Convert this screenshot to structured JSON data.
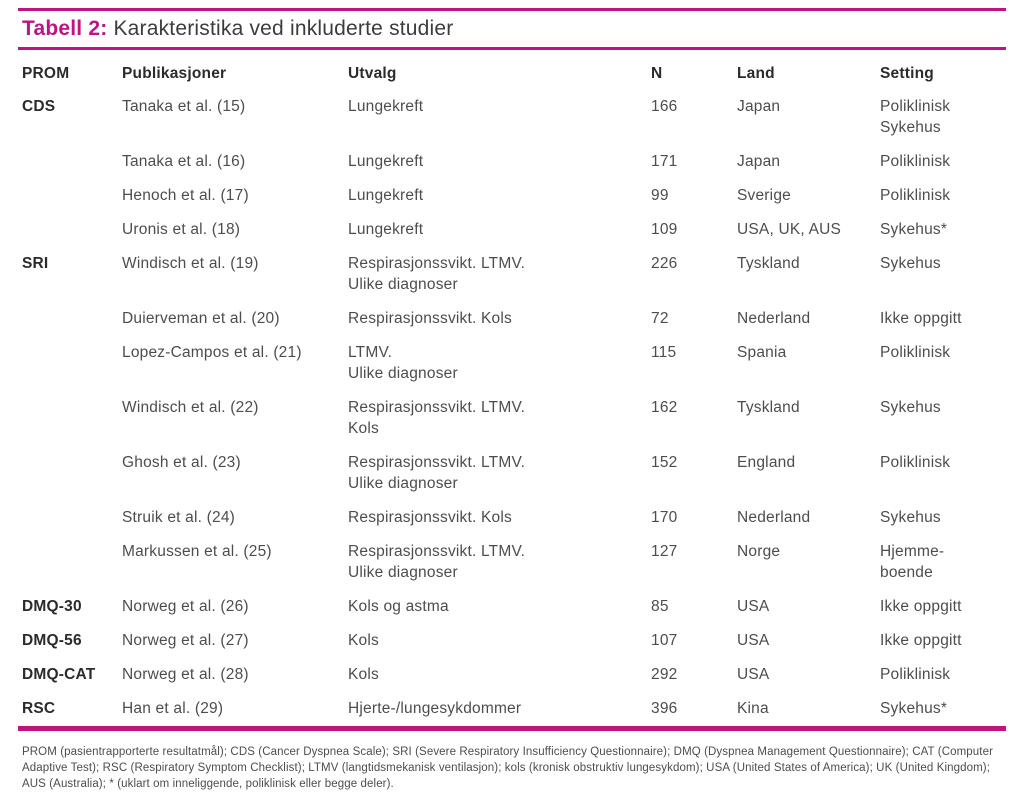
{
  "colors": {
    "accent": "#C01382",
    "header_text": "#2B2B2B",
    "body_text": "#4D4D4D",
    "title_text": "#3C3C3C"
  },
  "title": {
    "label": "Tabell 2:",
    "text": "Karakteristika ved inkluderte studier"
  },
  "table": {
    "headers": [
      "PROM",
      "Publikasjoner",
      "Utvalg",
      "N",
      "Land",
      "Setting"
    ],
    "rows": [
      {
        "prom": "CDS",
        "publikasjon": "Tanaka et al. (15)",
        "utvalg": "Lungekreft",
        "n": "166",
        "land": "Japan",
        "setting": "Poliklinisk\nSykehus"
      },
      {
        "prom": "",
        "publikasjon": "Tanaka et al. (16)",
        "utvalg": "Lungekreft",
        "n": "171",
        "land": "Japan",
        "setting": "Poliklinisk"
      },
      {
        "prom": "",
        "publikasjon": "Henoch et al. (17)",
        "utvalg": "Lungekreft",
        "n": "99",
        "land": "Sverige",
        "setting": "Poliklinisk"
      },
      {
        "prom": "",
        "publikasjon": "Uronis et al. (18)",
        "utvalg": "Lungekreft",
        "n": "109",
        "land": "USA, UK, AUS",
        "setting": "Sykehus*"
      },
      {
        "prom": "SRI",
        "publikasjon": "Windisch et al. (19)",
        "utvalg": "Respirasjonssvikt. LTMV.\nUlike diagnoser",
        "n": "226",
        "land": "Tyskland",
        "setting": "Sykehus"
      },
      {
        "prom": "",
        "publikasjon": "Duierveman et al. (20)",
        "utvalg": "Respirasjonssvikt. Kols",
        "n": "72",
        "land": "Nederland",
        "setting": "Ikke oppgitt"
      },
      {
        "prom": "",
        "publikasjon": "Lopez-Campos et al. (21)",
        "utvalg": "LTMV.\nUlike diagnoser",
        "n": "115",
        "land": "Spania",
        "setting": "Poliklinisk"
      },
      {
        "prom": "",
        "publikasjon": "Windisch et al. (22)",
        "utvalg": "Respirasjonssvikt. LTMV.\nKols",
        "n": "162",
        "land": "Tyskland",
        "setting": "Sykehus"
      },
      {
        "prom": "",
        "publikasjon": "Ghosh et al. (23)",
        "utvalg": "Respirasjonssvikt. LTMV.\nUlike diagnoser",
        "n": "152",
        "land": "England",
        "setting": "Poliklinisk"
      },
      {
        "prom": "",
        "publikasjon": "Struik et al. (24)",
        "utvalg": "Respirasjonssvikt. Kols",
        "n": "170",
        "land": "Nederland",
        "setting": "Sykehus"
      },
      {
        "prom": "",
        "publikasjon": "Markussen et al. (25)",
        "utvalg": "Respirasjonssvikt. LTMV.\nUlike diagnoser",
        "n": "127",
        "land": "Norge",
        "setting": "Hjemme-\nboende"
      },
      {
        "prom": "DMQ-30",
        "publikasjon": "Norweg et al. (26)",
        "utvalg": "Kols og astma",
        "n": "85",
        "land": "USA",
        "setting": "Ikke oppgitt"
      },
      {
        "prom": "DMQ-56",
        "publikasjon": "Norweg et al. (27)",
        "utvalg": "Kols",
        "n": "107",
        "land": "USA",
        "setting": "Ikke oppgitt"
      },
      {
        "prom": "DMQ-CAT",
        "publikasjon": "Norweg et al. (28)",
        "utvalg": "Kols",
        "n": "292",
        "land": "USA",
        "setting": "Poliklinisk"
      },
      {
        "prom": "RSC",
        "publikasjon": "Han et al. (29)",
        "utvalg": "Hjerte-/lungesykdommer",
        "n": "396",
        "land": "Kina",
        "setting": "Sykehus*"
      }
    ]
  },
  "footnote": "PROM (pasientrapporterte resultatmål); CDS (Cancer Dyspnea Scale); SRI (Severe Respiratory Insufficiency Questionnaire); DMQ (Dyspnea Management Questionnaire); CAT (Computer Adaptive Test); RSC (Respiratory Symptom Checklist); LTMV (langtidsmekanisk ventilasjon); kols (kronisk obstruktiv lungesykdom); USA (United States of America); UK (United Kingdom); AUS (Australia); * (uklart om inneliggende, poliklinisk eller begge deler)."
}
